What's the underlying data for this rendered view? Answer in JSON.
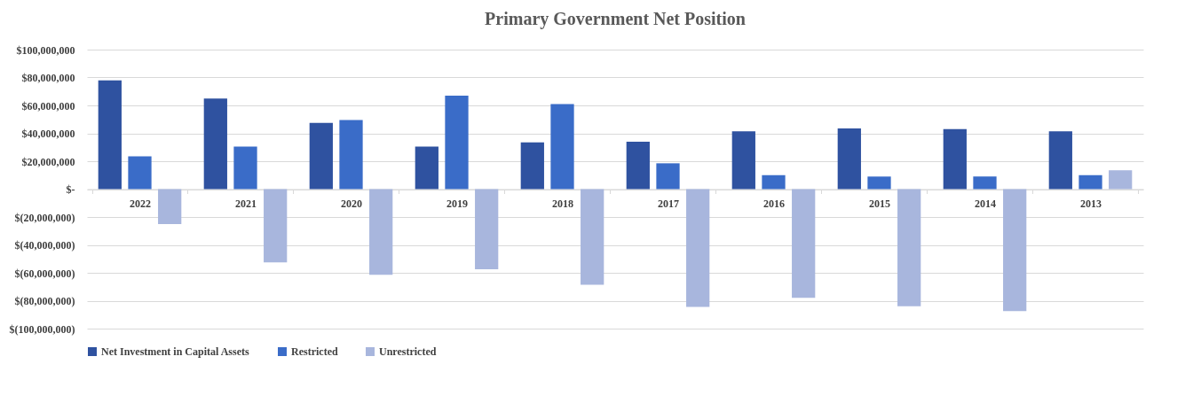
{
  "chart_data": {
    "type": "bar",
    "title": "Primary  Government  Net Position",
    "categories": [
      "2022",
      "2021",
      "2020",
      "2019",
      "2018",
      "2017",
      "2016",
      "2015",
      "2014",
      "2013"
    ],
    "series": [
      {
        "name": "Net Investment in Capital Assets",
        "color": "#2f52a0",
        "values": [
          78000000,
          65000000,
          47500000,
          30500000,
          33500000,
          34000000,
          41500000,
          43500000,
          43000000,
          41500000
        ]
      },
      {
        "name": "Restricted",
        "color": "#3a6cc8",
        "values": [
          23500000,
          30500000,
          49500000,
          67000000,
          61000000,
          18500000,
          10000000,
          9000000,
          9000000,
          10000000
        ]
      },
      {
        "name": "Unrestricted",
        "color": "#a8b6dd",
        "values": [
          -25000000,
          -52500000,
          -61500000,
          -57500000,
          -68500000,
          -84500000,
          -78000000,
          -84000000,
          -87500000,
          13500000
        ]
      }
    ],
    "ylim": [
      -100000000,
      100000000
    ],
    "yticks": [
      {
        "value": -100000000,
        "label": "$(100,000,000)"
      },
      {
        "value": -80000000,
        "label": "$(80,000,000)"
      },
      {
        "value": -60000000,
        "label": "$(60,000,000)"
      },
      {
        "value": -40000000,
        "label": "$(40,000,000)"
      },
      {
        "value": -20000000,
        "label": "$(20,000,000)"
      },
      {
        "value": 0,
        "label": "$-"
      },
      {
        "value": 20000000,
        "label": "$20,000,000"
      },
      {
        "value": 40000000,
        "label": "$40,000,000"
      },
      {
        "value": 60000000,
        "label": "$60,000,000"
      },
      {
        "value": 80000000,
        "label": "$80,000,000"
      },
      {
        "value": 100000000,
        "label": "$100,000,000"
      }
    ],
    "grid": "y",
    "legend": "bottom"
  }
}
